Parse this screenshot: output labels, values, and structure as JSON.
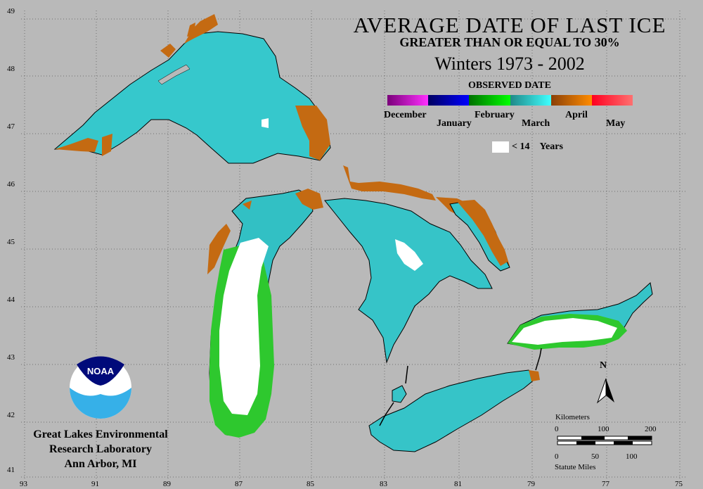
{
  "title": "AVERAGE DATE OF LAST ICE",
  "subtitle": "GREATER THAN OR EQUAL TO 30%",
  "period": "Winters 1973 - 2002",
  "legend": {
    "title": "OBSERVED DATE",
    "months": [
      "December",
      "January",
      "February",
      "March",
      "April",
      "May"
    ],
    "colors": {
      "December": "#b000b0",
      "January": "#0000a8",
      "February": "#00c000",
      "March": "#30c8c8",
      "April": "#c06410",
      "May": "#ff3040"
    },
    "white_label": "< 14",
    "white_unit": "Years"
  },
  "axes": {
    "latitudes": [
      "49",
      "48",
      "47",
      "46",
      "45",
      "44",
      "43",
      "42",
      "41"
    ],
    "longitudes": [
      "93",
      "91",
      "89",
      "87",
      "85",
      "83",
      "81",
      "79",
      "77",
      "75"
    ]
  },
  "scale": {
    "km_label": "Kilometers",
    "km_ticks": [
      "0",
      "100",
      "200"
    ],
    "mi_ticks": [
      "0",
      "50",
      "100"
    ],
    "mi_label": "Statute Miles",
    "north": "N"
  },
  "logo_text": "NOAA",
  "credit": [
    "Great Lakes Environmental",
    "Research Laboratory",
    "Ann Arbor, MI"
  ]
}
